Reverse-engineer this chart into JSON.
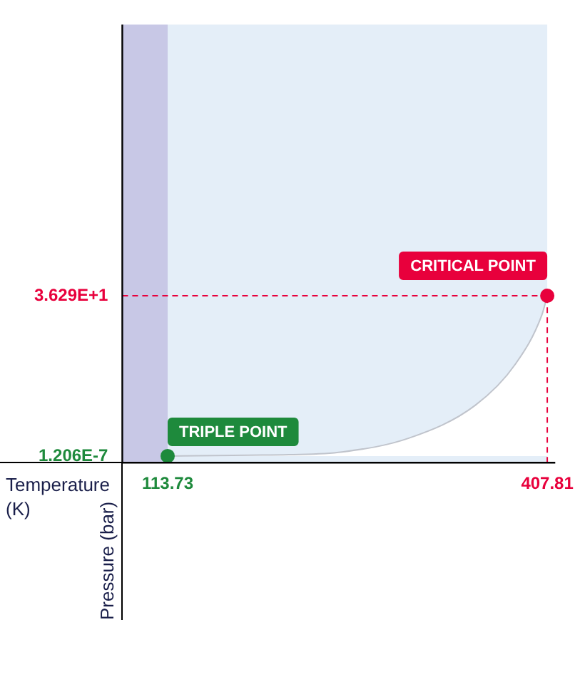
{
  "chart_data": {
    "type": "area",
    "xlabel": "Temperature (K)",
    "ylabel": "Pressure (bar)",
    "xlim": [
      78.6,
      414
    ],
    "ylim": [
      -1.5,
      97.7
    ],
    "xticks": [
      {
        "value": 113.73,
        "label": "113.73"
      },
      {
        "value": 407.81,
        "label": "407.81"
      }
    ],
    "yticks": [
      {
        "value": 1.206e-07,
        "label": "1.206E-7"
      },
      {
        "value": 36.29,
        "label": "3.629E+1"
      }
    ],
    "grid": false,
    "legend": false,
    "series": [
      {
        "color": "#ffffff",
        "x": [
          113.73,
          176.7,
          207.6,
          248.9,
          300.5,
          352.1,
          383.1,
          403.7,
          407.81
        ],
        "values": [
          1.206e-07,
          0.2,
          0.3,
          0.93,
          4.03,
          11.5,
          20.8,
          32.0,
          36.29
        ]
      },
      {
        "type": "scatter",
        "color": "#1e8a3c",
        "x": [
          113.73
        ],
        "values": [
          1.206e-07
        ],
        "marker": "circle"
      },
      {
        "type": "scatter",
        "color": "#e8003c",
        "x": [
          407.81
        ],
        "values": [
          36.29
        ],
        "marker": "circle"
      }
    ],
    "bands": [
      {
        "axis": "x",
        "from": 78.6,
        "to": 113.73,
        "color": "#c8c8e6"
      },
      {
        "axis": "x",
        "from": 113.73,
        "to": 407.81,
        "color": "#e4eef8"
      }
    ],
    "ref_lines": [
      {
        "axis": "y",
        "value": 36.29,
        "color": "#e8003c",
        "line_style": "dashed"
      },
      {
        "axis": "x",
        "value": 407.81,
        "color": "#e8003c",
        "line_style": "dashed"
      }
    ],
    "annotations": [
      {
        "text": "TRIPLE POINT",
        "x": 113.73,
        "y": 1.206e-07
      },
      {
        "text": "CRITICAL POINT",
        "x": 407.81,
        "y": 36.29
      }
    ]
  }
}
